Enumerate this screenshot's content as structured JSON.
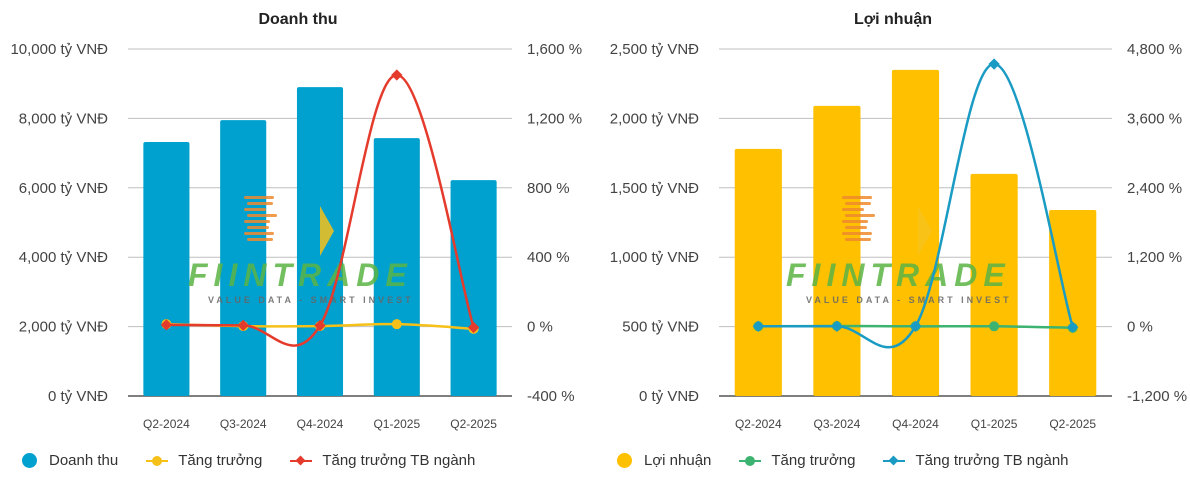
{
  "chart_data": [
    {
      "type": "bar+line",
      "title": "Doanh thu",
      "categories": [
        "Q2-2024",
        "Q3-2024",
        "Q4-2024",
        "Q1-2025",
        "Q2-2025"
      ],
      "y_left": {
        "unit": "tỷ VNĐ",
        "range": [
          0,
          10000
        ],
        "ticks": [
          0,
          2000,
          4000,
          6000,
          8000,
          10000
        ],
        "tick_labels": [
          "0 tỷ VNĐ",
          "2,000 tỷ VNĐ",
          "4,000 tỷ VNĐ",
          "6,000 tỷ VNĐ",
          "8,000 tỷ VNĐ",
          "10,000 tỷ VNĐ"
        ]
      },
      "y_right": {
        "unit": "%",
        "range": [
          -400,
          1600
        ],
        "ticks": [
          -400,
          0,
          400,
          800,
          1200,
          1600
        ],
        "tick_labels": [
          "-400 %",
          "0 %",
          "400 %",
          "800 %",
          "1,200 %",
          "1,600 %"
        ]
      },
      "grid": true,
      "legend_position": "bottom-left",
      "series": [
        {
          "name": "Doanh thu",
          "kind": "bar",
          "axis": "left",
          "color": "#00a0cf",
          "values": [
            7320,
            7950,
            8900,
            7430,
            6220
          ]
        },
        {
          "name": "Tăng trưởng",
          "kind": "line",
          "axis": "right",
          "color": "#f5c018",
          "marker": "circle",
          "values": [
            14,
            3,
            3,
            14,
            -13
          ]
        },
        {
          "name": "Tăng trưởng TB ngành",
          "kind": "line",
          "axis": "right",
          "color": "#e53b2c",
          "marker": "diamond",
          "values": [
            10,
            7,
            6,
            1450,
            -5
          ]
        }
      ]
    },
    {
      "type": "bar+line",
      "title": "Lợi nhuận",
      "categories": [
        "Q2-2024",
        "Q3-2024",
        "Q4-2024",
        "Q1-2025",
        "Q2-2025"
      ],
      "y_left": {
        "unit": "tỷ VNĐ",
        "range": [
          0,
          2500
        ],
        "ticks": [
          0,
          500,
          1000,
          1500,
          2000,
          2500
        ],
        "tick_labels": [
          "0 tỷ VNĐ",
          "500 tỷ VNĐ",
          "1,000 tỷ VNĐ",
          "1,500 tỷ VNĐ",
          "2,000 tỷ VNĐ",
          "2,500 tỷ VNĐ"
        ]
      },
      "y_right": {
        "unit": "%",
        "range": [
          -1200,
          4800
        ],
        "ticks": [
          -1200,
          0,
          1200,
          2400,
          3600,
          4800
        ],
        "tick_labels": [
          "-1,200 %",
          "0 %",
          "1,200 %",
          "2,400 %",
          "3,600 %",
          "4,800 %"
        ]
      },
      "grid": true,
      "legend_position": "bottom-left",
      "series": [
        {
          "name": "Lợi nhuận",
          "kind": "bar",
          "axis": "left",
          "color": "#ffc000",
          "values": [
            1780,
            2090,
            2350,
            1600,
            1340
          ]
        },
        {
          "name": "Tăng trưởng",
          "kind": "line",
          "axis": "right",
          "color": "#3cb371",
          "marker": "circle",
          "values": [
            5,
            10,
            5,
            5,
            -20
          ]
        },
        {
          "name": "Tăng trưởng TB ngành",
          "kind": "line",
          "axis": "right",
          "color": "#1a9bc4",
          "marker": "diamond",
          "values": [
            5,
            5,
            5,
            4540,
            -10
          ]
        }
      ]
    }
  ],
  "watermark": {
    "brand": "FIINTRADE",
    "tagline": "VALUE DATA - SMART INVEST"
  }
}
